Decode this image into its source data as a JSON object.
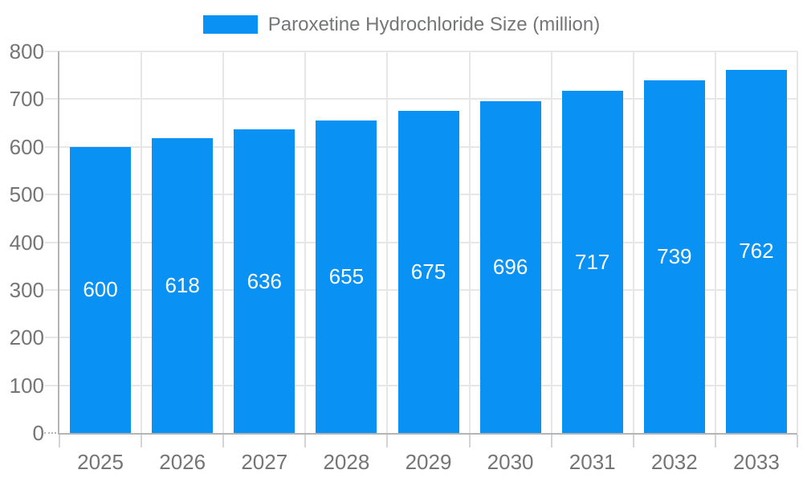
{
  "chart_data": {
    "type": "bar",
    "title": "",
    "legend": {
      "label": "Paroxetine Hydrochloride Size (million)",
      "position": "top-center"
    },
    "categories": [
      "2025",
      "2026",
      "2027",
      "2028",
      "2029",
      "2030",
      "2031",
      "2032",
      "2033"
    ],
    "series": [
      {
        "name": "Paroxetine Hydrochloride Size (million)",
        "values": [
          600,
          618,
          636,
          655,
          675,
          696,
          717,
          739,
          762
        ]
      }
    ],
    "xlabel": "",
    "ylabel": "",
    "ylim": [
      0,
      800
    ],
    "ytick_step": 100,
    "grid": true,
    "bar_labels": "inside-center",
    "colors": {
      "bar": "#0991F3",
      "bar_label": "#FFFFFF",
      "axis_text": "#757575",
      "legend_text": "#747678",
      "gridline": "#E7E7E7",
      "x_tick": "#D4D4D4",
      "axis_line": "#B4B4B4"
    }
  }
}
